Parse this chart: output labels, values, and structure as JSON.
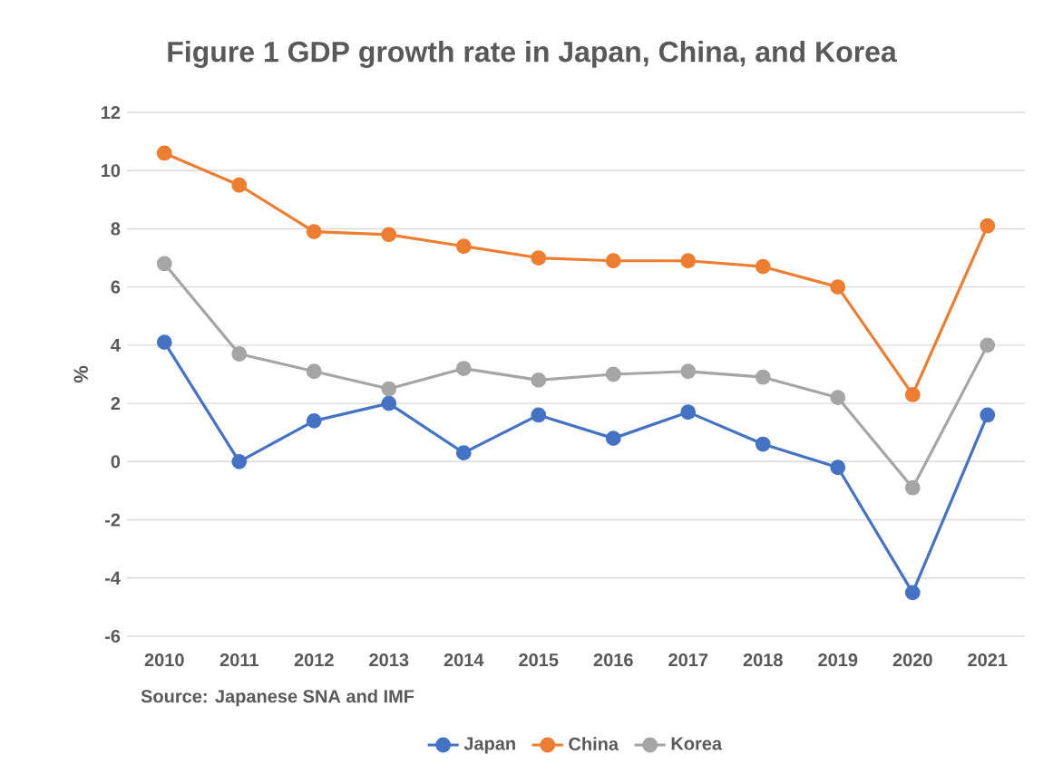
{
  "chart_data": {
    "type": "line",
    "title": "Figure 1 GDP growth rate in Japan, China, and Korea",
    "ylabel": "%",
    "categories": [
      "2010",
      "2011",
      "2012",
      "2013",
      "2014",
      "2015",
      "2016",
      "2017",
      "2018",
      "2019",
      "2020",
      "2021"
    ],
    "series": [
      {
        "name": "Japan",
        "color": "#4472c4",
        "values": [
          4.1,
          0.0,
          1.4,
          2.0,
          0.3,
          1.6,
          0.8,
          1.7,
          0.6,
          -0.2,
          -4.5,
          1.6
        ]
      },
      {
        "name": "China",
        "color": "#ed7d31",
        "values": [
          10.6,
          9.5,
          7.9,
          7.8,
          7.4,
          7.0,
          6.9,
          6.9,
          6.7,
          6.0,
          2.3,
          8.1
        ]
      },
      {
        "name": "Korea",
        "color": "#a5a5a5",
        "values": [
          6.8,
          3.7,
          3.1,
          2.5,
          3.2,
          2.8,
          3.0,
          3.1,
          2.9,
          2.2,
          -0.9,
          4.0
        ]
      }
    ],
    "ylim": [
      -6,
      12
    ],
    "yticks": [
      -6,
      -4,
      -2,
      0,
      2,
      4,
      6,
      8,
      10,
      12
    ],
    "grid": "y",
    "legend": "bottom",
    "marker": "circle",
    "line_style": "solid",
    "annotations": [
      "Source: Japanese SNA and IMF"
    ]
  }
}
